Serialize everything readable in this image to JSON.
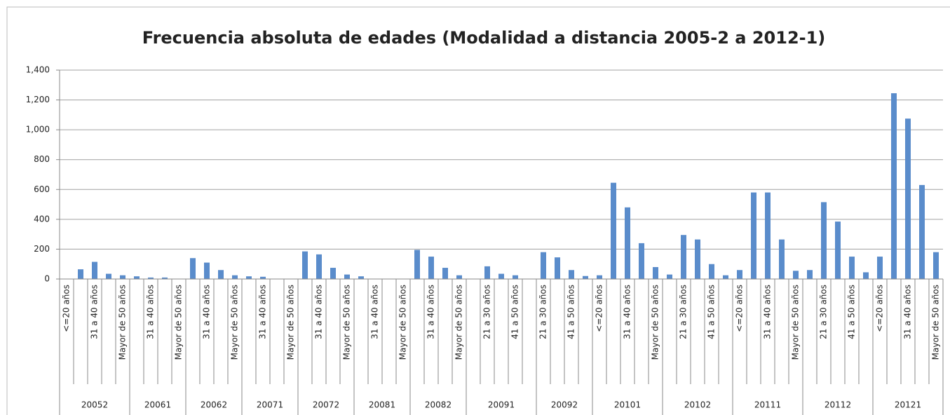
{
  "chart_data": {
    "type": "bar",
    "title": "Frecuencia absoluta de edades (Modalidad a distancia 2005-2 a 2012-1)",
    "color": "#5a8ccb",
    "grid": true,
    "ylim": [
      0,
      1400
    ],
    "yticks": [
      0,
      200,
      400,
      600,
      800,
      {
        "value": 1000,
        "label": "1,000"
      },
      {
        "value": 1200,
        "label": "1,200"
      },
      {
        "value": 1400,
        "label": "1,400"
      }
    ],
    "groups": [
      {
        "name": "20052",
        "categories": [
          "<=20 años",
          null,
          "31 a 40 años",
          null,
          "Mayor de 50 años"
        ],
        "values": [
          0,
          65,
          115,
          35,
          25
        ]
      },
      {
        "name": "20061",
        "categories": [
          null,
          "31 a 40 años",
          null,
          "Mayor de 50 años"
        ],
        "values": [
          18,
          10,
          10,
          0
        ]
      },
      {
        "name": "20062",
        "categories": [
          null,
          "31 a 40 años",
          null,
          "Mayor de 50 años"
        ],
        "values": [
          140,
          110,
          60,
          25
        ]
      },
      {
        "name": "20071",
        "categories": [
          null,
          "31 a 40 años",
          null,
          "Mayor de 50 años"
        ],
        "values": [
          18,
          15,
          0,
          0
        ]
      },
      {
        "name": "20072",
        "categories": [
          null,
          "31 a 40 años",
          null,
          "Mayor de 50 años"
        ],
        "values": [
          185,
          165,
          75,
          30
        ]
      },
      {
        "name": "20081",
        "categories": [
          null,
          "31 a 40 años",
          null,
          "Mayor de 50 años"
        ],
        "values": [
          18,
          0,
          0,
          0
        ]
      },
      {
        "name": "20082",
        "categories": [
          null,
          "31 a 40 años",
          null,
          "Mayor de 50 años"
        ],
        "values": [
          195,
          150,
          75,
          25
        ]
      },
      {
        "name": "20091",
        "categories": [
          null,
          "21 a 30 años",
          null,
          "41 a 50 años",
          null
        ],
        "values": [
          0,
          85,
          35,
          25,
          0
        ]
      },
      {
        "name": "20092",
        "categories": [
          "21 a 30 años",
          null,
          "41 a 50 años",
          null
        ],
        "values": [
          180,
          145,
          60,
          20
        ]
      },
      {
        "name": "20101",
        "categories": [
          "<=20 años",
          null,
          "31 a 40 años",
          null,
          "Mayor de 50 años"
        ],
        "values": [
          25,
          645,
          480,
          240,
          80
        ]
      },
      {
        "name": "20102",
        "categories": [
          null,
          "21 a 30 años",
          null,
          "41 a 50 años",
          null
        ],
        "values": [
          30,
          295,
          265,
          100,
          25
        ]
      },
      {
        "name": "20111",
        "categories": [
          "<=20 años",
          null,
          "31 a 40 años",
          null,
          "Mayor de 50 años"
        ],
        "values": [
          60,
          580,
          580,
          265,
          55
        ]
      },
      {
        "name": "20112",
        "categories": [
          null,
          "21 a 30 años",
          null,
          "41 a 50 años",
          null
        ],
        "values": [
          60,
          515,
          385,
          150,
          45
        ]
      },
      {
        "name": "20121",
        "categories": [
          "<=20 años",
          null,
          "31 a 40 años",
          null,
          "Mayor de 50 años"
        ],
        "values": [
          150,
          1245,
          1075,
          630,
          180
        ]
      }
    ]
  }
}
